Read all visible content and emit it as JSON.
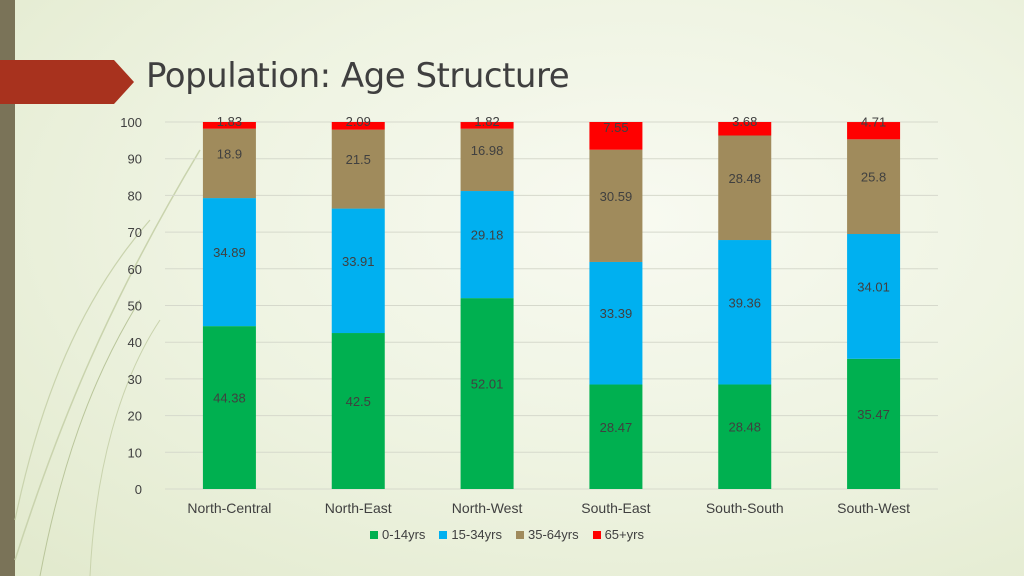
{
  "slide": {
    "title": "Population: Age Structure",
    "accent_color": "#a8321e",
    "band_color": "#7a7358"
  },
  "chart_data": {
    "type": "bar",
    "stacked": true,
    "title": "",
    "xlabel": "",
    "ylabel": "",
    "ylim": [
      0,
      100
    ],
    "yticks": [
      "0",
      "10",
      "20",
      "30",
      "40",
      "50",
      "60",
      "70",
      "80",
      "90",
      "100"
    ],
    "grid": true,
    "legend_position": "bottom",
    "categories": [
      "North-Central",
      "North-East",
      "North-West",
      "South-East",
      "South-South",
      "South-West"
    ],
    "series": [
      {
        "name": "0-14yrs",
        "color": "#00b050",
        "values": [
          44.38,
          42.5,
          52.01,
          28.47,
          28.48,
          35.47
        ],
        "labels": [
          "44.38",
          "42.5",
          "52.01",
          "28.47",
          "28.48",
          "35.47"
        ]
      },
      {
        "name": "15-34yrs",
        "color": "#00b0f0",
        "values": [
          34.89,
          33.91,
          29.18,
          33.39,
          39.36,
          34.01
        ],
        "labels": [
          "34.89",
          "33.91",
          "29.18",
          "33.39",
          "39.36",
          "34.01"
        ]
      },
      {
        "name": "35-64yrs",
        "color": "#a08b5c",
        "values": [
          18.9,
          21.5,
          16.98,
          30.59,
          28.48,
          25.8
        ],
        "labels": [
          "18.9",
          "21.5",
          "16.98",
          "30.59",
          "28.48",
          "25.8"
        ]
      },
      {
        "name": "65+yrs",
        "color": "#ff0000",
        "values": [
          1.83,
          2.09,
          1.82,
          7.55,
          3.68,
          4.71
        ],
        "labels": [
          "1.83",
          "2.09",
          "1.82",
          "7.55",
          "3.68",
          "4.71"
        ]
      }
    ]
  }
}
